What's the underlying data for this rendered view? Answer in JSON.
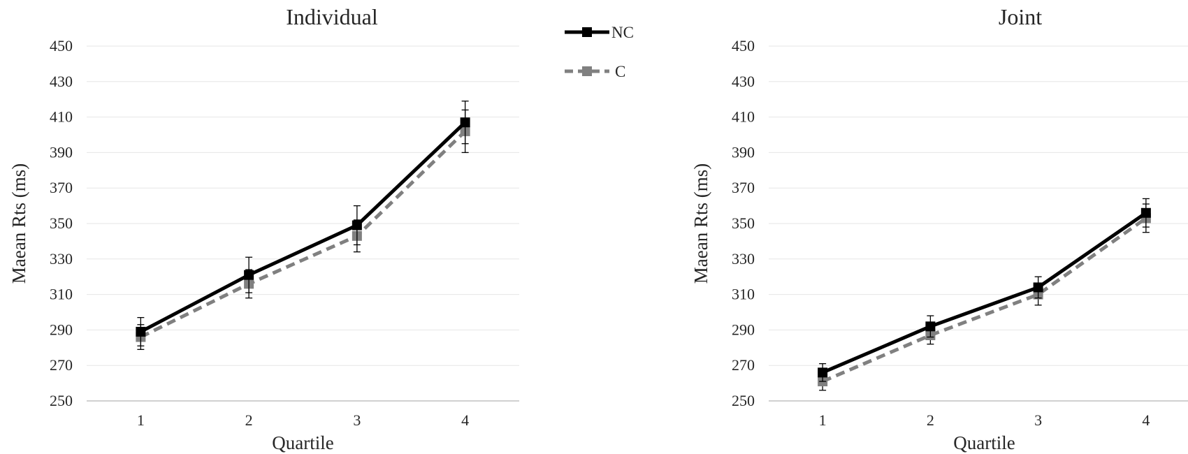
{
  "chart_data": [
    {
      "type": "line",
      "title": "Individual",
      "xlabel": "Quartile",
      "ylabel": "Maean Rts (ms)",
      "categories": [
        "1",
        "2",
        "3",
        "4"
      ],
      "yticks": [
        "250",
        "270",
        "290",
        "310",
        "330",
        "350",
        "370",
        "390",
        "410",
        "430",
        "450"
      ],
      "ylim": [
        250,
        450
      ],
      "grid": true,
      "series": [
        {
          "name": "NC",
          "values": [
            289,
            321,
            349,
            407
          ],
          "error": [
            8,
            10,
            11,
            12
          ],
          "color": "#000000",
          "dash": "solid",
          "marker": "square"
        },
        {
          "name": "C",
          "values": [
            286,
            316,
            343,
            402
          ],
          "error": [
            7,
            8,
            9,
            12
          ],
          "color": "#808080",
          "dash": "dashed",
          "marker": "square"
        }
      ]
    },
    {
      "type": "line",
      "title": "Joint",
      "xlabel": "Quartile",
      "ylabel": "Maean Rts (ms)",
      "categories": [
        "1",
        "2",
        "3",
        "4"
      ],
      "yticks": [
        "250",
        "270",
        "290",
        "310",
        "330",
        "350",
        "370",
        "390",
        "410",
        "430",
        "450"
      ],
      "ylim": [
        250,
        450
      ],
      "grid": true,
      "series": [
        {
          "name": "NC",
          "values": [
            266,
            292,
            314,
            356
          ],
          "error": [
            5,
            6,
            6,
            8
          ],
          "color": "#000000",
          "dash": "solid",
          "marker": "square"
        },
        {
          "name": "C",
          "values": [
            261,
            287,
            310,
            353
          ],
          "error": [
            5,
            5,
            6,
            8
          ],
          "color": "#808080",
          "dash": "dashed",
          "marker": "square"
        }
      ]
    }
  ],
  "legend": {
    "placement": "top-center",
    "items": [
      {
        "label": "NC",
        "color": "#000000",
        "dash": "solid"
      },
      {
        "label": "C",
        "color": "#808080",
        "dash": "dashed"
      }
    ]
  }
}
